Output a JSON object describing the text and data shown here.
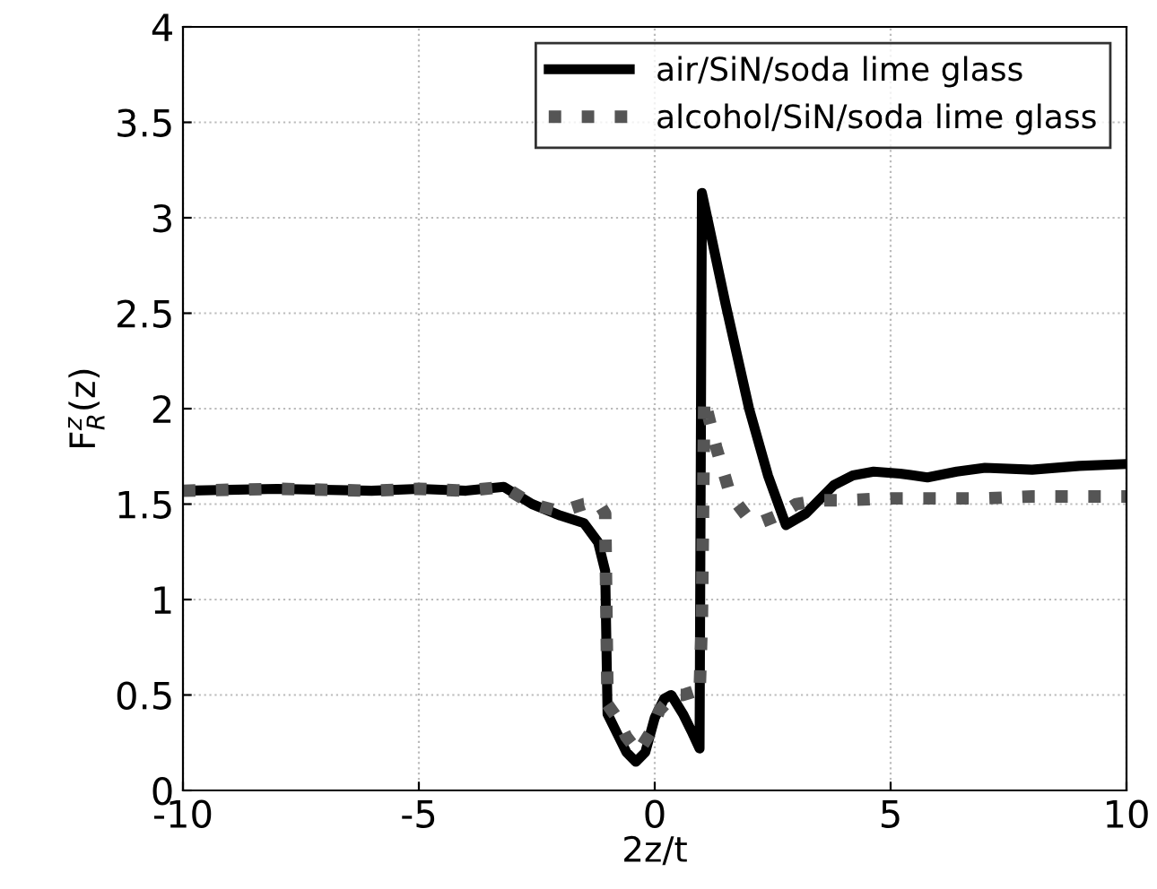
{
  "chart_data": {
    "type": "line",
    "xlabel": "2z/t",
    "ylabel": "F$^{z}$$_{R}$(z)",
    "xlim": [
      -10,
      10
    ],
    "ylim": [
      0,
      4
    ],
    "xticks": [
      -10,
      -5,
      0,
      5,
      10
    ],
    "yticks": [
      0,
      0.5,
      1,
      1.5,
      2,
      2.5,
      3,
      3.5,
      4
    ],
    "grid": true,
    "legend": "top right",
    "series": [
      {
        "name": "air/SiN/soda lime glass",
        "color": "#000000",
        "line_style": "solid",
        "x": [
          -10,
          -8,
          -6,
          -5,
          -4,
          -3.2,
          -2.6,
          -2,
          -1.5,
          -1.2,
          -1.05,
          -1.0,
          -0.8,
          -0.6,
          -0.4,
          -0.2,
          0,
          0.2,
          0.35,
          0.6,
          0.8,
          0.95,
          1.0,
          1.2,
          1.5,
          2,
          2.4,
          2.78,
          3.2,
          3.8,
          4.2,
          4.64,
          5.2,
          5.78,
          6.4,
          7,
          8,
          9,
          10
        ],
        "values": [
          1.57,
          1.58,
          1.57,
          1.58,
          1.57,
          1.59,
          1.5,
          1.44,
          1.4,
          1.3,
          1.15,
          0.4,
          0.3,
          0.2,
          0.15,
          0.2,
          0.38,
          0.48,
          0.5,
          0.4,
          0.3,
          0.22,
          3.13,
          2.9,
          2.55,
          2.0,
          1.65,
          1.39,
          1.45,
          1.6,
          1.65,
          1.67,
          1.66,
          1.64,
          1.67,
          1.69,
          1.68,
          1.7,
          1.71
        ]
      },
      {
        "name": "alcohol/SiN/soda lime glass",
        "color": "#555555",
        "line_style": "dotted",
        "x": [
          -10,
          -8,
          -6,
          -5,
          -4,
          -3.2,
          -2.6,
          -2,
          -1.5,
          -1.2,
          -1.05,
          -1.0,
          -0.8,
          -0.6,
          -0.35,
          -0.1,
          0.1,
          0.4,
          0.6,
          0.85,
          0.95,
          1.0,
          1.05,
          1.3,
          1.6,
          2.0,
          2.2,
          2.6,
          3.0,
          3.5,
          4,
          5,
          6,
          7,
          8,
          9,
          10
        ],
        "values": [
          1.57,
          1.58,
          1.57,
          1.58,
          1.57,
          1.59,
          1.5,
          1.46,
          1.5,
          1.51,
          1.45,
          0.45,
          0.38,
          0.28,
          0.2,
          0.3,
          0.42,
          0.5,
          0.5,
          0.52,
          0.5,
          0.9,
          2.05,
          1.8,
          1.55,
          1.42,
          1.4,
          1.44,
          1.5,
          1.52,
          1.52,
          1.53,
          1.53,
          1.53,
          1.54,
          1.54,
          1.54
        ]
      }
    ]
  }
}
